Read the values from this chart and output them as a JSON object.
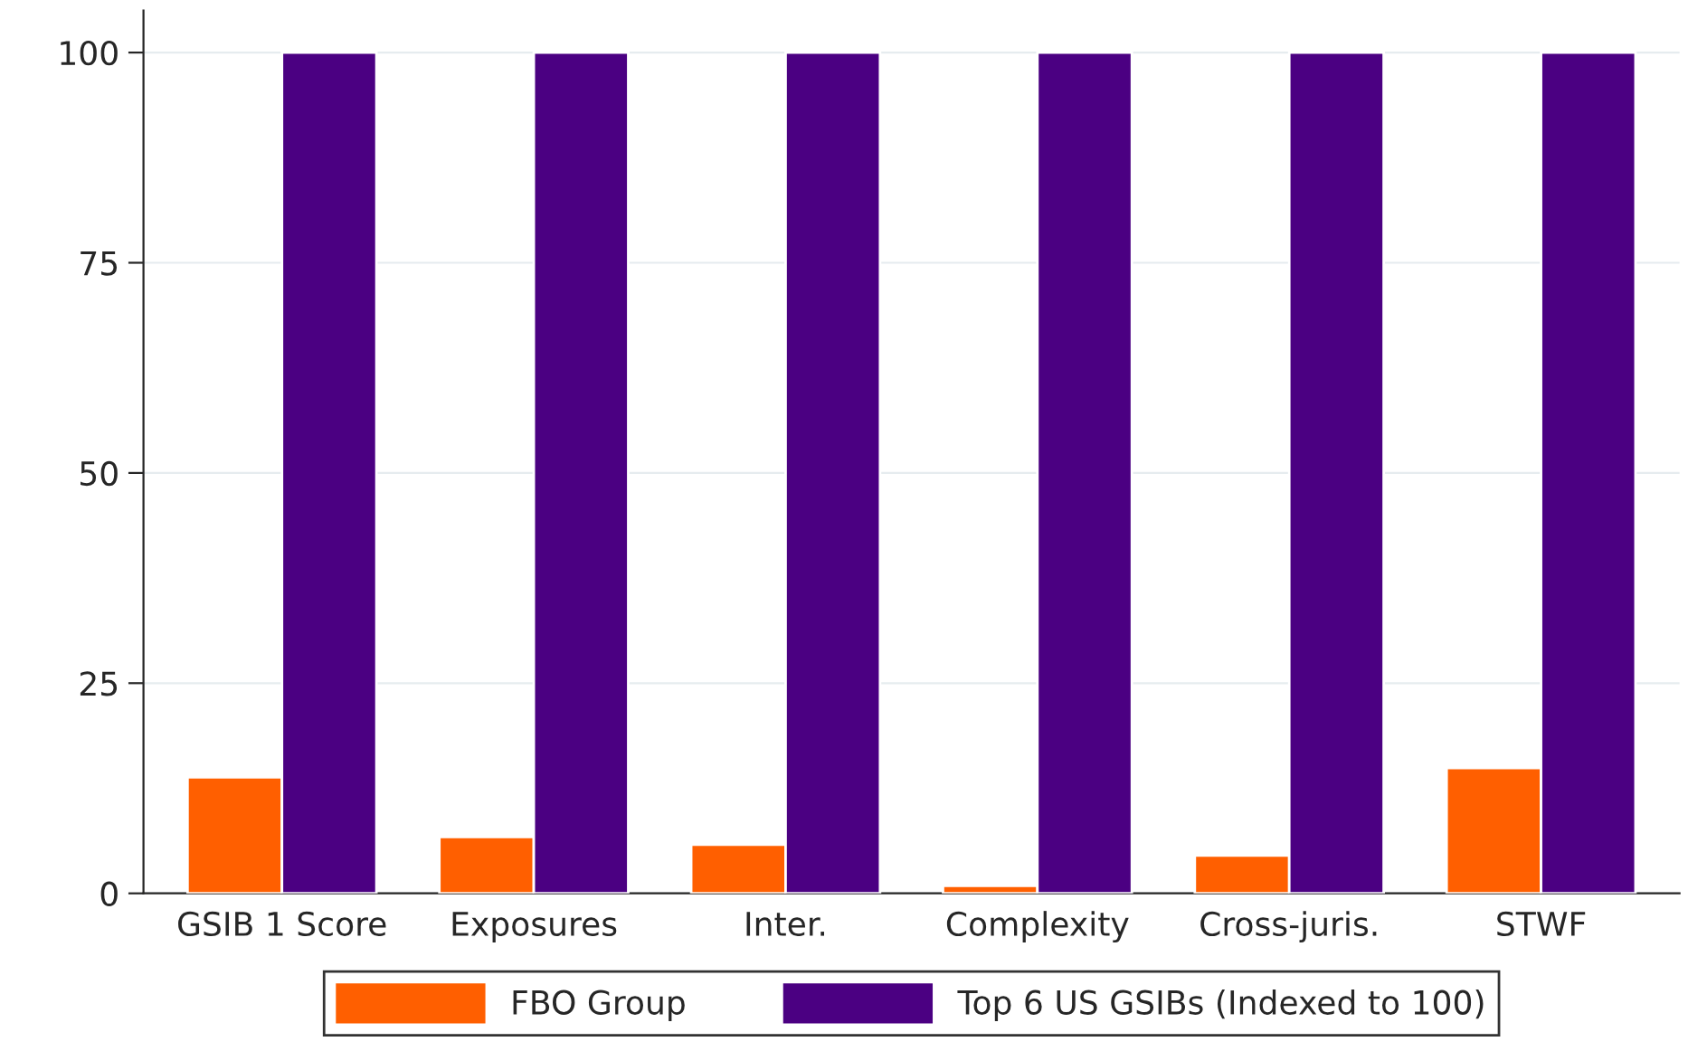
{
  "chart_data": {
    "type": "bar",
    "categories": [
      "GSIB 1 Score",
      "Exposures",
      "Inter.",
      "Complexity",
      "Cross-juris.",
      "STWF"
    ],
    "series": [
      {
        "name": "FBO Group",
        "color": "#ff5f00",
        "values": [
          13.8,
          6.7,
          5.8,
          0.9,
          4.5,
          14.9
        ]
      },
      {
        "name": "Top 6 US GSIBs (Indexed to 100)",
        "color": "#4b0082",
        "values": [
          100,
          100,
          100,
          100,
          100,
          100
        ]
      }
    ],
    "ylim": [
      0,
      105
    ],
    "yticks": [
      0,
      25,
      50,
      75,
      100
    ],
    "grid": "y",
    "legend": "bottom"
  }
}
